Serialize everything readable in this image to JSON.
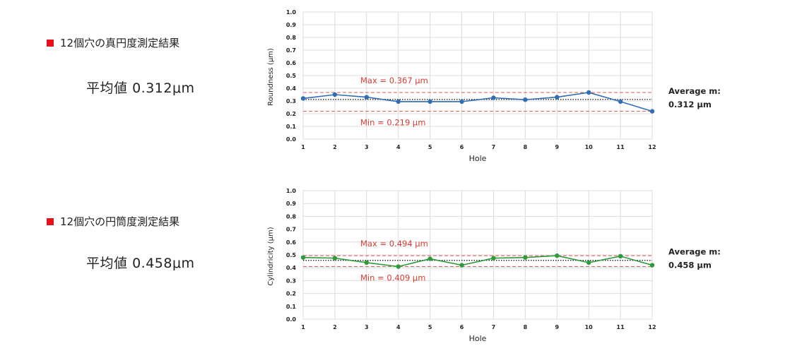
{
  "left_panel": {
    "roundness": {
      "heading": "12個穴の真円度測定結果",
      "average_label": "平均値",
      "average_value": "0.312",
      "unit": "μm"
    },
    "cylindricity": {
      "heading": "12個穴の円筒度測定結果",
      "average_label": "平均値",
      "average_value": "0.458",
      "unit": "μm"
    }
  },
  "chart_data": [
    {
      "type": "line",
      "xlabel": "Hole",
      "ylabel": "Roundness (μm)",
      "x": [
        1,
        2,
        3,
        4,
        5,
        6,
        7,
        8,
        9,
        10,
        11,
        12
      ],
      "yticks": [
        "0.0",
        "0.1",
        "0.2",
        "0.3",
        "0.4",
        "0.5",
        "0.6",
        "0.7",
        "0.8",
        "0.9",
        "1.0"
      ],
      "ylim": [
        0,
        1.0
      ],
      "grid": true,
      "series": [
        {
          "values": [
            0.32,
            0.35,
            0.33,
            0.295,
            0.295,
            0.295,
            0.325,
            0.31,
            0.33,
            0.367,
            0.295,
            0.219
          ],
          "color": "#2f6db5"
        }
      ],
      "max": {
        "value": 0.367,
        "label": "Max = 0.367 μm",
        "color": "#e05a4e"
      },
      "min": {
        "value": 0.219,
        "label": "Min = 0.219 μm",
        "color": "#e05a4e"
      },
      "average": {
        "value": 0.312,
        "label_line1": "Average m:",
        "label_line2": "0.312 μm"
      }
    },
    {
      "type": "line",
      "xlabel": "Hole",
      "ylabel": "Cylindricity (μm)",
      "x": [
        1,
        2,
        3,
        4,
        5,
        6,
        7,
        8,
        9,
        10,
        11,
        12
      ],
      "yticks": [
        "0.0",
        "0.1",
        "0.2",
        "0.3",
        "0.4",
        "0.5",
        "0.6",
        "0.7",
        "0.8",
        "0.9",
        "1.0"
      ],
      "ylim": [
        0,
        1.0
      ],
      "grid": true,
      "series": [
        {
          "values": [
            0.48,
            0.475,
            0.44,
            0.409,
            0.47,
            0.42,
            0.475,
            0.48,
            0.494,
            0.44,
            0.49,
            0.42
          ],
          "color": "#2e9a3c"
        }
      ],
      "max": {
        "value": 0.494,
        "label": "Max = 0.494 μm",
        "color": "#e05a4e"
      },
      "min": {
        "value": 0.409,
        "label": "Min = 0.409 μm",
        "color": "#e05a4e"
      },
      "average": {
        "value": 0.458,
        "label_line1": "Average m:",
        "label_line2": "0.458 μm"
      }
    }
  ]
}
